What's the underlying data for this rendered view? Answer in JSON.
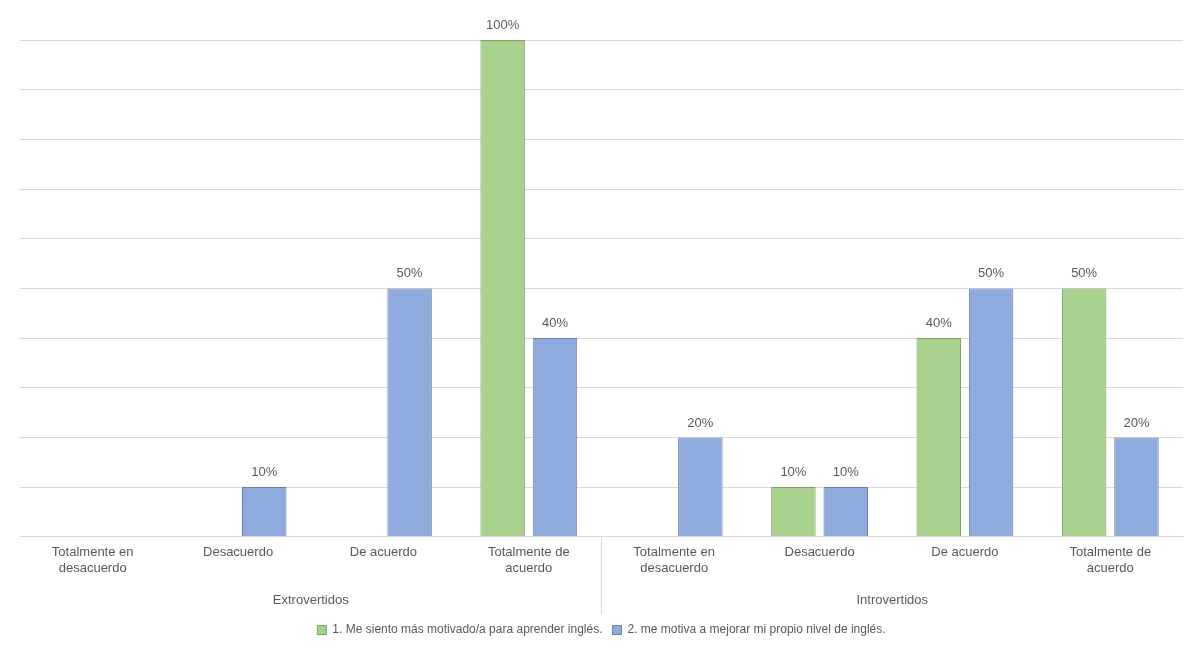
{
  "chart_data": {
    "type": "bar",
    "categories": [
      "Totalmente en desacuerdo",
      "Desacuerdo",
      "De acuerdo",
      "Totalmente de acuerdo",
      "Totalmente en desacuerdo",
      "Desacuerdo",
      "De acuerdo",
      "Totalmente de acuerdo"
    ],
    "series": [
      {
        "name": "1. Me siento más motivado/a para aprender inglés.",
        "color": "#a9d18e",
        "values": [
          0,
          0,
          0,
          100,
          0,
          10,
          40,
          50
        ],
        "value_labels": [
          null,
          null,
          null,
          "100%",
          null,
          "10%",
          "40%",
          "50%"
        ]
      },
      {
        "name": "2. me motiva a mejorar mi propio nivel de inglés.",
        "color": "#8faadc",
        "values": [
          0,
          10,
          50,
          40,
          20,
          10,
          50,
          20
        ],
        "value_labels": [
          null,
          "10%",
          "50%",
          "40%",
          "20%",
          "10%",
          "50%",
          "20%"
        ]
      }
    ],
    "annotations": [
      "Extrovertidos",
      "Introvertidos"
    ],
    "ylim": [
      0,
      100
    ],
    "yticks": [
      {
        "value": 0,
        "label": null
      },
      {
        "value": 10,
        "label": null
      },
      {
        "value": 20,
        "label": null
      },
      {
        "value": 30,
        "label": null
      },
      {
        "value": 40,
        "label": null
      },
      {
        "value": 50,
        "label": null
      },
      {
        "value": 60,
        "label": null
      },
      {
        "value": 70,
        "label": null
      },
      {
        "value": 80,
        "label": null
      },
      {
        "value": 90,
        "label": null
      },
      {
        "value": 100,
        "label": null
      }
    ],
    "tick_labels": "x",
    "grid": "y",
    "legend": "bottom"
  }
}
